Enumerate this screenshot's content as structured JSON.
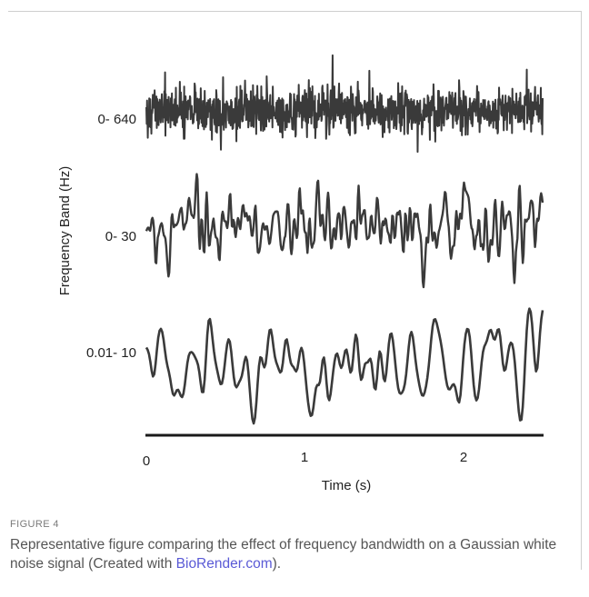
{
  "chart_data": {
    "type": "line",
    "ylabel": "Frequency Band (Hz)",
    "xlabel": "Time (s)",
    "x_ticks": [
      "0",
      "1",
      "2"
    ],
    "xlim": [
      0,
      2.5
    ],
    "series": [
      {
        "name": "0- 640",
        "kind": "noise",
        "amplitude": "high",
        "band_hz": [
          0,
          640
        ]
      },
      {
        "name": "0- 30",
        "kind": "noise",
        "amplitude": "medium",
        "band_hz": [
          0,
          30
        ]
      },
      {
        "name": "0.01- 10",
        "kind": "noise",
        "amplitude": "medium",
        "band_hz": [
          0.01,
          10
        ]
      }
    ],
    "grid": false,
    "line_color": "#3a3a3a"
  },
  "caption": {
    "label": "FIGURE 4",
    "text_before": "Representative figure comparing the effect of frequency bandwidth on a Gaussian white noise signal (Created with ",
    "link_text": "BioRender.com",
    "text_after": ")."
  }
}
